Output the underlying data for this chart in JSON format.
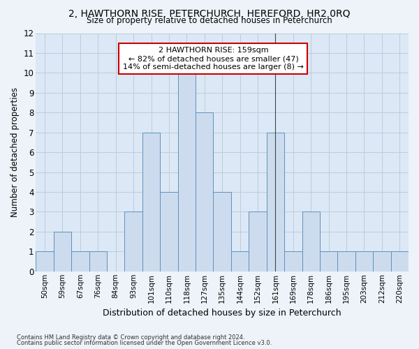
{
  "title1": "2, HAWTHORN RISE, PETERCHURCH, HEREFORD, HR2 0RQ",
  "title2": "Size of property relative to detached houses in Peterchurch",
  "xlabel": "Distribution of detached houses by size in Peterchurch",
  "ylabel": "Number of detached properties",
  "categories": [
    "50sqm",
    "59sqm",
    "67sqm",
    "76sqm",
    "84sqm",
    "93sqm",
    "101sqm",
    "110sqm",
    "118sqm",
    "127sqm",
    "135sqm",
    "144sqm",
    "152sqm",
    "161sqm",
    "169sqm",
    "178sqm",
    "186sqm",
    "195sqm",
    "203sqm",
    "212sqm",
    "220sqm"
  ],
  "values": [
    1,
    2,
    1,
    1,
    0,
    3,
    7,
    4,
    10,
    8,
    4,
    1,
    3,
    7,
    1,
    3,
    1,
    1,
    1,
    1,
    1
  ],
  "bar_color": "#ccdcee",
  "bar_edge_color": "#6090bb",
  "subject_bar_index": 13,
  "annotation_title": "2 HAWTHORN RISE: 159sqm",
  "annotation_line1": "← 82% of detached houses are smaller (47)",
  "annotation_line2": "14% of semi-detached houses are larger (8) →",
  "annotation_box_color": "#ffffff",
  "annotation_box_edge": "#cc0000",
  "ylim": [
    0,
    12
  ],
  "yticks": [
    0,
    1,
    2,
    3,
    4,
    5,
    6,
    7,
    8,
    9,
    10,
    11,
    12
  ],
  "grid_color": "#bbccdd",
  "bg_color": "#dce8f5",
  "fig_bg_color": "#edf3f9",
  "footer1": "Contains HM Land Registry data © Crown copyright and database right 2024.",
  "footer2": "Contains public sector information licensed under the Open Government Licence v3.0."
}
